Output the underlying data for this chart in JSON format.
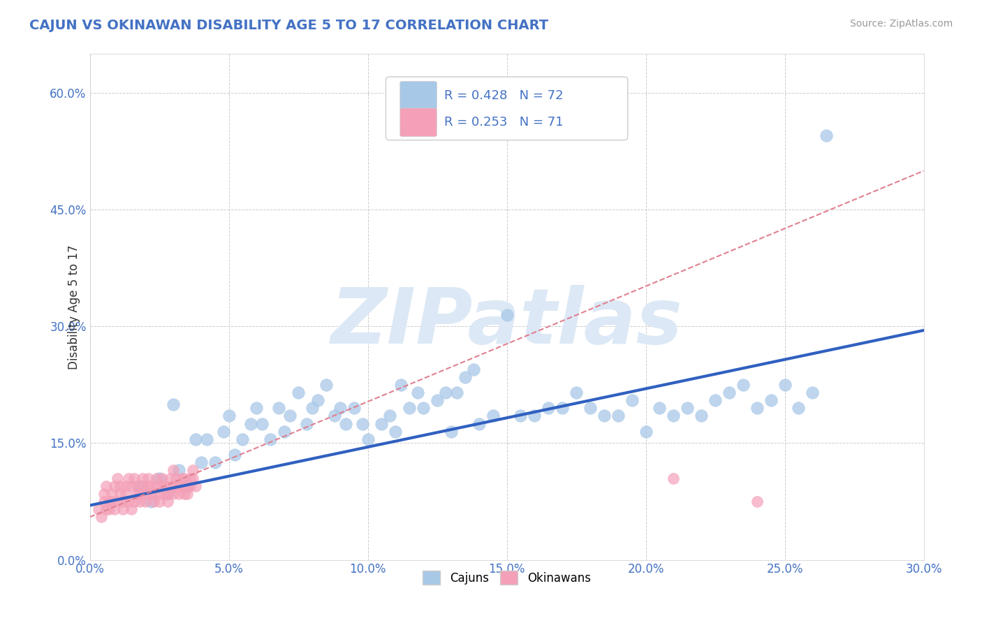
{
  "title": "CAJUN VS OKINAWAN DISABILITY AGE 5 TO 17 CORRELATION CHART",
  "source_text": "Source: ZipAtlas.com",
  "xlim": [
    0.0,
    0.3
  ],
  "ylim": [
    0.0,
    0.65
  ],
  "cajun_R": 0.428,
  "cajun_N": 72,
  "okinawan_R": 0.253,
  "okinawan_N": 71,
  "cajun_color": "#a8c8e8",
  "okinawan_color": "#f4a0b8",
  "cajun_line_color": "#3060c0",
  "okinawan_line_color": "#e08090",
  "tick_color": "#4472c4",
  "title_color": "#4472c4",
  "source_color": "#999999",
  "watermark_color": "#dce8f5",
  "background_color": "#ffffff",
  "grid_color": "#cccccc",
  "cajun_scatter_x": [
    0.018,
    0.022,
    0.025,
    0.028,
    0.03,
    0.032,
    0.035,
    0.038,
    0.04,
    0.042,
    0.045,
    0.048,
    0.05,
    0.052,
    0.055,
    0.058,
    0.06,
    0.062,
    0.065,
    0.068,
    0.07,
    0.072,
    0.075,
    0.078,
    0.08,
    0.082,
    0.085,
    0.088,
    0.09,
    0.092,
    0.095,
    0.098,
    0.1,
    0.105,
    0.108,
    0.11,
    0.112,
    0.115,
    0.118,
    0.12,
    0.125,
    0.128,
    0.13,
    0.132,
    0.135,
    0.138,
    0.14,
    0.145,
    0.15,
    0.155,
    0.16,
    0.165,
    0.17,
    0.175,
    0.18,
    0.185,
    0.19,
    0.195,
    0.2,
    0.205,
    0.21,
    0.215,
    0.22,
    0.225,
    0.23,
    0.235,
    0.24,
    0.245,
    0.25,
    0.255,
    0.26,
    0.265
  ],
  "cajun_scatter_y": [
    0.095,
    0.075,
    0.105,
    0.085,
    0.2,
    0.115,
    0.095,
    0.155,
    0.125,
    0.155,
    0.125,
    0.165,
    0.185,
    0.135,
    0.155,
    0.175,
    0.195,
    0.175,
    0.155,
    0.195,
    0.165,
    0.185,
    0.215,
    0.175,
    0.195,
    0.205,
    0.225,
    0.185,
    0.195,
    0.175,
    0.195,
    0.175,
    0.155,
    0.175,
    0.185,
    0.165,
    0.225,
    0.195,
    0.215,
    0.195,
    0.205,
    0.215,
    0.165,
    0.215,
    0.235,
    0.245,
    0.175,
    0.185,
    0.315,
    0.185,
    0.185,
    0.195,
    0.195,
    0.215,
    0.195,
    0.185,
    0.185,
    0.205,
    0.165,
    0.195,
    0.185,
    0.195,
    0.185,
    0.205,
    0.215,
    0.225,
    0.195,
    0.205,
    0.225,
    0.195,
    0.215,
    0.545
  ],
  "okinawan_scatter_x": [
    0.003,
    0.004,
    0.005,
    0.005,
    0.006,
    0.006,
    0.007,
    0.007,
    0.008,
    0.008,
    0.009,
    0.009,
    0.01,
    0.01,
    0.011,
    0.011,
    0.012,
    0.012,
    0.013,
    0.013,
    0.014,
    0.014,
    0.015,
    0.015,
    0.016,
    0.016,
    0.017,
    0.017,
    0.018,
    0.018,
    0.019,
    0.019,
    0.02,
    0.02,
    0.021,
    0.021,
    0.022,
    0.022,
    0.023,
    0.023,
    0.024,
    0.024,
    0.025,
    0.025,
    0.026,
    0.026,
    0.027,
    0.027,
    0.028,
    0.028,
    0.029,
    0.029,
    0.03,
    0.03,
    0.031,
    0.031,
    0.032,
    0.032,
    0.033,
    0.033,
    0.034,
    0.034,
    0.035,
    0.035,
    0.036,
    0.036,
    0.037,
    0.037,
    0.038,
    0.21,
    0.24
  ],
  "okinawan_scatter_y": [
    0.065,
    0.055,
    0.075,
    0.085,
    0.065,
    0.095,
    0.075,
    0.065,
    0.085,
    0.075,
    0.095,
    0.065,
    0.075,
    0.105,
    0.085,
    0.095,
    0.075,
    0.065,
    0.095,
    0.085,
    0.105,
    0.075,
    0.065,
    0.095,
    0.105,
    0.075,
    0.085,
    0.095,
    0.075,
    0.085,
    0.095,
    0.105,
    0.085,
    0.075,
    0.095,
    0.105,
    0.085,
    0.095,
    0.075,
    0.085,
    0.105,
    0.095,
    0.085,
    0.075,
    0.095,
    0.105,
    0.085,
    0.095,
    0.075,
    0.085,
    0.095,
    0.105,
    0.085,
    0.115,
    0.095,
    0.105,
    0.085,
    0.095,
    0.105,
    0.095,
    0.085,
    0.105,
    0.095,
    0.085,
    0.105,
    0.095,
    0.115,
    0.105,
    0.095,
    0.105,
    0.075
  ],
  "cajun_line_x0": 0.0,
  "cajun_line_y0": 0.07,
  "cajun_line_x1": 0.3,
  "cajun_line_y1": 0.295,
  "okin_line_x0": 0.0,
  "okin_line_y0": 0.055,
  "okin_line_x1": 0.3,
  "okin_line_y1": 0.5,
  "watermark": "ZIPatlas"
}
